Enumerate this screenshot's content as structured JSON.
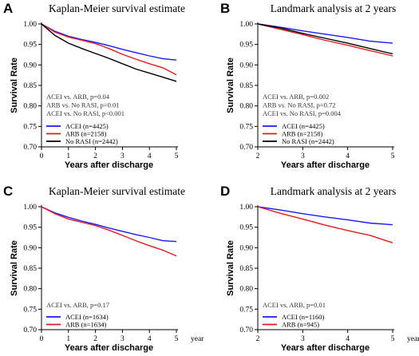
{
  "chart_data": [
    {
      "panel": "A",
      "type": "line",
      "title": "Kaplan-Meier survival estimate",
      "xlabel": "Years after discharge",
      "ylabel": "Survival  Rate",
      "xlim": [
        0,
        5
      ],
      "ylim": [
        0.7,
        1.0
      ],
      "xticks": [
        "0",
        "1",
        "2",
        "3",
        "4",
        "5"
      ],
      "yticks": [
        "0.70",
        "0.75",
        "0.80",
        "0.85",
        "0.90",
        "0.95",
        "1.00"
      ],
      "stats": [
        "ACEI vs. ARB,  p=0.04",
        "ARB vs. No RASI,  p=0.01",
        "ACEI vs. No RASI,  p<0.001"
      ],
      "x_unit": "",
      "series": [
        {
          "name": "ACEI (n=4425)",
          "color": "#1a1aff",
          "x": [
            0,
            0.5,
            1,
            1.5,
            2,
            2.5,
            3,
            3.5,
            4,
            4.5,
            5
          ],
          "y": [
            1.0,
            0.982,
            0.97,
            0.962,
            0.955,
            0.947,
            0.938,
            0.93,
            0.922,
            0.915,
            0.912
          ]
        },
        {
          "name": "ARB (n=2158)",
          "color": "#e41a1a",
          "x": [
            0,
            0.5,
            1,
            1.5,
            2,
            2.5,
            3,
            3.5,
            4,
            4.5,
            5
          ],
          "y": [
            1.0,
            0.98,
            0.968,
            0.96,
            0.952,
            0.94,
            0.926,
            0.914,
            0.903,
            0.893,
            0.876
          ]
        },
        {
          "name": "No RASI (n=2442)",
          "color": "#000000",
          "x": [
            0,
            0.5,
            1,
            1.5,
            2,
            2.5,
            3,
            3.5,
            4,
            4.5,
            5
          ],
          "y": [
            1.0,
            0.972,
            0.953,
            0.94,
            0.928,
            0.916,
            0.903,
            0.89,
            0.88,
            0.87,
            0.86
          ]
        }
      ]
    },
    {
      "panel": "B",
      "type": "line",
      "title": "Landmark analysis at 2 years",
      "xlabel": "Years after discharge",
      "ylabel": "Survival  Rate",
      "xlim": [
        2,
        5
      ],
      "ylim": [
        0.7,
        1.0
      ],
      "xticks": [
        "2",
        "3",
        "4",
        "5"
      ],
      "yticks": [
        "0.70",
        "0.75",
        "0.80",
        "0.85",
        "0.90",
        "0.95",
        "1.00"
      ],
      "stats": [
        "ACEI vs. ARB,  p=0.002",
        "ARB vs. No RASI,  p=0.72",
        "ACEI vs. No RASI,  p=0.004"
      ],
      "x_unit": "",
      "series": [
        {
          "name": "ACEI (n=4425)",
          "color": "#1a1aff",
          "x": [
            2,
            2.5,
            3,
            3.5,
            4,
            4.5,
            5
          ],
          "y": [
            1.0,
            0.992,
            0.983,
            0.975,
            0.967,
            0.958,
            0.953
          ]
        },
        {
          "name": "ARB (n=2158)",
          "color": "#e41a1a",
          "x": [
            2,
            2.5,
            3,
            3.5,
            4,
            4.5,
            5
          ],
          "y": [
            1.0,
            0.987,
            0.974,
            0.96,
            0.948,
            0.935,
            0.922
          ]
        },
        {
          "name": "No RASI (n=2442)",
          "color": "#000000",
          "x": [
            2,
            2.5,
            3,
            3.5,
            4,
            4.5,
            5
          ],
          "y": [
            1.0,
            0.99,
            0.977,
            0.965,
            0.953,
            0.94,
            0.927
          ]
        }
      ]
    },
    {
      "panel": "C",
      "type": "line",
      "title": "Kaplan-Meier survival estimate",
      "xlabel": "Years after discharge",
      "ylabel": "Survival  Rate",
      "xlim": [
        0,
        5
      ],
      "ylim": [
        0.7,
        1.0
      ],
      "xticks": [
        "0",
        "1",
        "2",
        "3",
        "4",
        "5"
      ],
      "yticks": [
        "0.70",
        "0.75",
        "0.80",
        "0.85",
        "0.90",
        "0.95",
        "1.00"
      ],
      "stats": [
        "ACEI vs. ARB,  p=0.17"
      ],
      "x_unit": "year",
      "series": [
        {
          "name": "ACEI (n=1634)",
          "color": "#1a1aff",
          "x": [
            0,
            0.5,
            1,
            1.5,
            2,
            2.5,
            3,
            3.5,
            4,
            4.5,
            5
          ],
          "y": [
            1.0,
            0.985,
            0.974,
            0.965,
            0.957,
            0.948,
            0.94,
            0.932,
            0.925,
            0.917,
            0.915
          ]
        },
        {
          "name": "ARB (n=1634)",
          "color": "#e41a1a",
          "x": [
            0,
            0.5,
            1,
            1.5,
            2,
            2.5,
            3,
            3.5,
            4,
            4.5,
            5
          ],
          "y": [
            1.0,
            0.983,
            0.97,
            0.962,
            0.954,
            0.943,
            0.93,
            0.917,
            0.905,
            0.894,
            0.88
          ]
        }
      ]
    },
    {
      "panel": "D",
      "type": "line",
      "title": "Landmark analysis at 2 years",
      "xlabel": "Years after discharge",
      "ylabel": "Survival  Rate",
      "xlim": [
        2,
        5
      ],
      "ylim": [
        0.7,
        1.0
      ],
      "xticks": [
        "2",
        "3",
        "4",
        "5"
      ],
      "yticks": [
        "0.70",
        "0.75",
        "0.80",
        "0.85",
        "0.90",
        "0.95",
        "1.00"
      ],
      "stats": [
        "ACEI vs. ARB,  p=0.01"
      ],
      "x_unit": "year",
      "series": [
        {
          "name": "ACEI (n=1160)",
          "color": "#1a1aff",
          "x": [
            2,
            2.5,
            3,
            3.5,
            4,
            4.5,
            5
          ],
          "y": [
            1.0,
            0.992,
            0.983,
            0.975,
            0.968,
            0.96,
            0.956
          ]
        },
        {
          "name": "ARB (n=945)",
          "color": "#e41a1a",
          "x": [
            2,
            2.5,
            3,
            3.5,
            4,
            4.5,
            5
          ],
          "y": [
            1.0,
            0.984,
            0.97,
            0.955,
            0.942,
            0.93,
            0.912
          ]
        }
      ]
    }
  ]
}
